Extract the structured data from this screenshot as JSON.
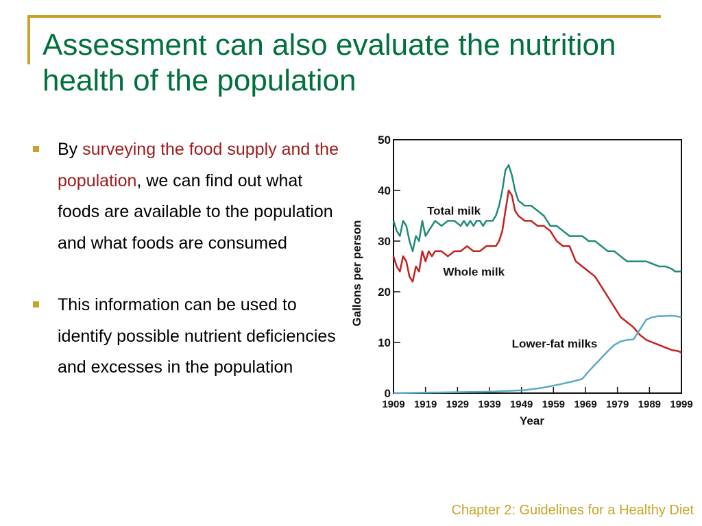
{
  "slide": {
    "title": "Assessment can also evaluate the nutrition health of the population",
    "bullets": [
      {
        "prefix": "By ",
        "highlight": "surveying the food supply and the population",
        "suffix": ", we can find out what foods are available to the population and what foods are consumed"
      },
      {
        "prefix": "This information can be used to identify possible nutrient deficiencies and excesses in the population",
        "highlight": "",
        "suffix": ""
      }
    ],
    "footer": "Chapter 2: Guidelines for a Healthy Diet"
  },
  "colors": {
    "title": "#00703c",
    "accent": "#c9a227",
    "highlight": "#a01c1c",
    "total_milk": "#1f8a78",
    "whole_milk": "#c4201e",
    "lower_fat": "#5aaac8"
  },
  "chart_data": {
    "type": "line",
    "xlabel": "Year",
    "ylabel": "Gallons per person",
    "xlim": [
      1909,
      1999
    ],
    "ylim": [
      0,
      50
    ],
    "xticks": [
      "1909",
      "1919",
      "1929",
      "1939",
      "1949",
      "1959",
      "1969",
      "1979",
      "1989",
      "1999"
    ],
    "yticks": [
      "0",
      "10",
      "20",
      "30",
      "40",
      "50"
    ],
    "grid": false,
    "legend": "inline labels",
    "series": [
      {
        "name": "Total milk",
        "x": [
          1909,
          1910,
          1911,
          1912,
          1913,
          1914,
          1915,
          1916,
          1917,
          1918,
          1919,
          1920,
          1921,
          1922,
          1924,
          1926,
          1928,
          1930,
          1931,
          1932,
          1933,
          1934,
          1935,
          1936,
          1937,
          1938,
          1940,
          1941,
          1942,
          1943,
          1944,
          1945,
          1946,
          1947,
          1948,
          1950,
          1952,
          1954,
          1956,
          1958,
          1960,
          1962,
          1964,
          1966,
          1968,
          1970,
          1972,
          1974,
          1976,
          1978,
          1980,
          1982,
          1984,
          1986,
          1988,
          1990,
          1992,
          1994,
          1996,
          1997,
          1998,
          1999
        ],
        "values": [
          34,
          32,
          31,
          34,
          33,
          30,
          28,
          31,
          30,
          34,
          31,
          32,
          33,
          34,
          33,
          34,
          34,
          33,
          34,
          33,
          34,
          33,
          34,
          34,
          33,
          34,
          34,
          35,
          37,
          40,
          44,
          45,
          43,
          40,
          38,
          37,
          37,
          36,
          35,
          33,
          33,
          32,
          31,
          31,
          31,
          30,
          30,
          29,
          28,
          28,
          27,
          26,
          26,
          26,
          26,
          25.5,
          25,
          25,
          24.5,
          24,
          24,
          24
        ]
      },
      {
        "name": "Whole milk",
        "x": [
          1909,
          1910,
          1911,
          1912,
          1913,
          1914,
          1915,
          1916,
          1917,
          1918,
          1919,
          1920,
          1921,
          1922,
          1924,
          1926,
          1928,
          1930,
          1932,
          1934,
          1936,
          1938,
          1940,
          1941,
          1942,
          1943,
          1944,
          1945,
          1946,
          1947,
          1948,
          1950,
          1952,
          1954,
          1956,
          1958,
          1960,
          1962,
          1964,
          1966,
          1968,
          1970,
          1972,
          1974,
          1976,
          1978,
          1980,
          1982,
          1984,
          1986,
          1988,
          1990,
          1992,
          1994,
          1996,
          1998,
          1999
        ],
        "values": [
          27,
          25,
          24,
          27,
          26,
          23,
          22,
          25,
          24,
          28,
          26,
          28,
          27,
          28,
          28,
          27,
          28,
          28,
          29,
          28,
          28,
          29,
          29,
          29,
          30,
          32,
          36,
          40,
          39,
          36,
          35,
          34,
          34,
          33,
          33,
          32,
          30,
          29,
          29,
          26,
          25,
          24,
          23,
          21,
          19,
          17,
          15,
          14,
          13,
          11.5,
          10.5,
          10,
          9.5,
          9,
          8.5,
          8.3,
          8
        ]
      },
      {
        "name": "Lower-fat milks",
        "x": [
          1909,
          1930,
          1940,
          1950,
          1955,
          1960,
          1965,
          1968,
          1970,
          1973,
          1976,
          1978,
          1980,
          1982,
          1984,
          1986,
          1988,
          1990,
          1992,
          1994,
          1996,
          1999
        ],
        "values": [
          0,
          0.2,
          0.3,
          0.6,
          1.0,
          1.6,
          2.3,
          2.8,
          4.3,
          6.3,
          8.3,
          9.5,
          10.2,
          10.5,
          10.6,
          12.5,
          14.5,
          15,
          15.2,
          15.2,
          15.3,
          15
        ]
      }
    ]
  }
}
